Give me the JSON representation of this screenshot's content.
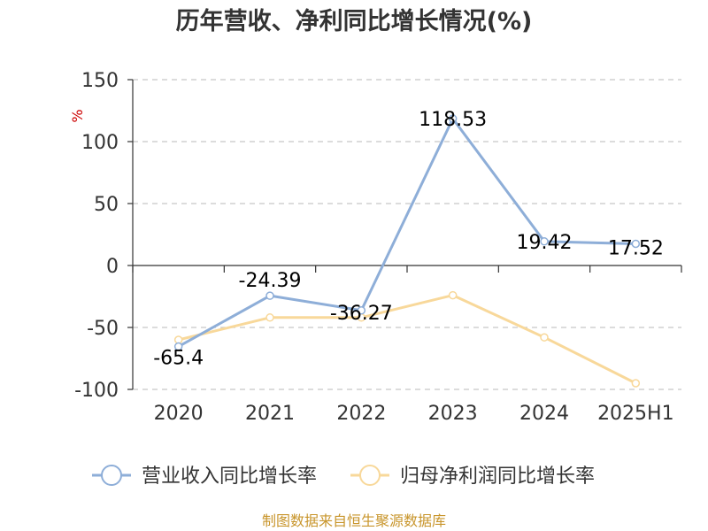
{
  "chart_data": {
    "type": "line",
    "title": "历年营收、净利同比增长情况(%)",
    "ylabel": "%",
    "categories": [
      "2020",
      "2021",
      "2022",
      "2023",
      "2024",
      "2025H1"
    ],
    "ylim": [
      -100,
      150
    ],
    "yticks": [
      150,
      100,
      50,
      0,
      -50,
      -100
    ],
    "grid": true,
    "legend_position": "bottom",
    "series": [
      {
        "name": "营业收入同比增长率",
        "color": "#8eaed8",
        "values": [
          -65.4,
          -24.39,
          -36.27,
          118.53,
          19.42,
          17.52
        ],
        "labels": [
          "-65.4",
          "-24.39",
          "-36.27",
          "118.53",
          "19.42",
          "17.52"
        ]
      },
      {
        "name": "归母净利润同比增长率",
        "color": "#f8d89a",
        "values": [
          -60,
          -42,
          -42,
          -24,
          -58,
          -95
        ]
      }
    ]
  },
  "source": "制图数据来自恒生聚源数据库"
}
